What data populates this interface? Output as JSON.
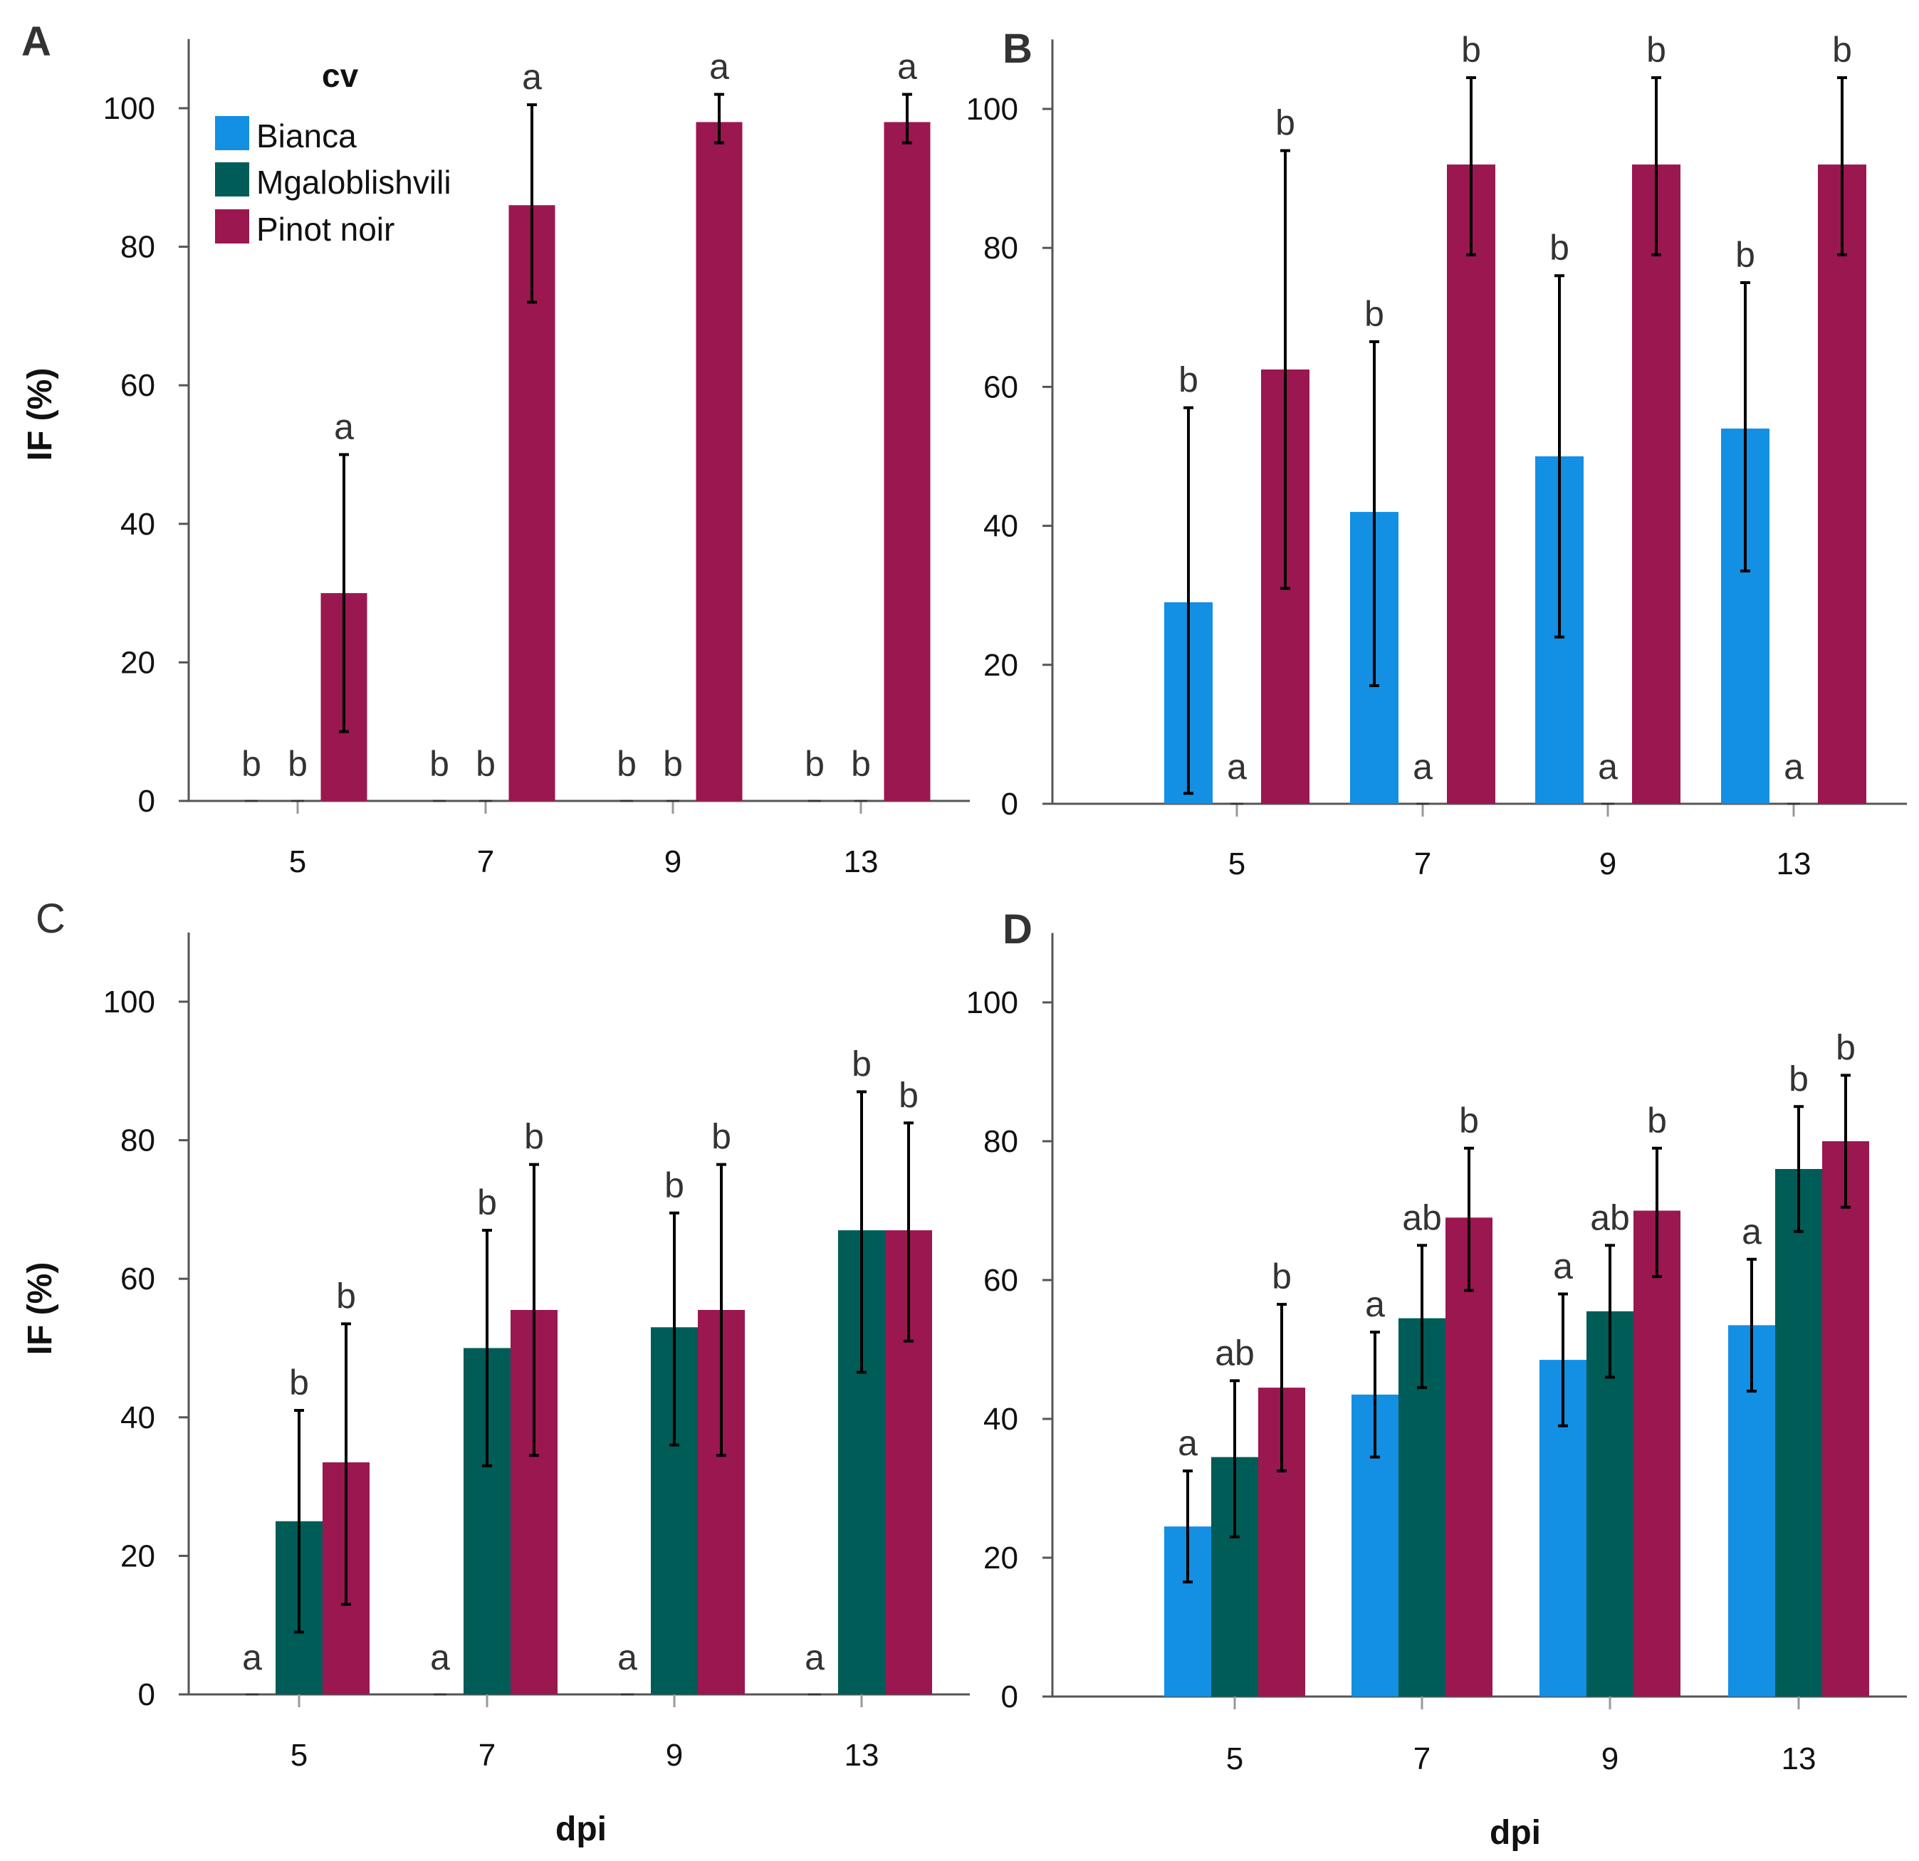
{
  "colors": {
    "Bianca": "#138fe3",
    "Mgaloblishvili": "#005c57",
    "Pinot noir": "#9b1750",
    "axis": "#555555",
    "errorbar": "#000000"
  },
  "legend": {
    "title": "cv",
    "items": [
      "Bianca",
      "Mgaloblishvili",
      "Pinot noir"
    ]
  },
  "chart_data": [
    {
      "panel": "A",
      "type": "bar",
      "categories": [
        "5",
        "7",
        "9",
        "13"
      ],
      "xlabel": "",
      "ylabel": "IF (%)",
      "ylim": [
        0,
        110
      ],
      "yticks": [
        0,
        20,
        40,
        60,
        80,
        100
      ],
      "series": [
        {
          "name": "Bianca",
          "values": [
            0,
            0,
            0,
            0
          ],
          "lower": [
            0,
            0,
            0,
            0
          ],
          "upper": [
            0,
            0,
            0,
            0
          ],
          "letters": [
            "b",
            "b",
            "b",
            "b"
          ]
        },
        {
          "name": "Mgaloblishvili",
          "values": [
            0,
            0,
            0,
            0
          ],
          "lower": [
            0,
            0,
            0,
            0
          ],
          "upper": [
            0,
            0,
            0,
            0
          ],
          "letters": [
            "b",
            "b",
            "b",
            "b"
          ]
        },
        {
          "name": "Pinot noir",
          "values": [
            30,
            86,
            98,
            98
          ],
          "lower": [
            10,
            72,
            95,
            95
          ],
          "upper": [
            50,
            100.5,
            102,
            102
          ],
          "letters": [
            "a",
            "a",
            "a",
            "a"
          ]
        }
      ]
    },
    {
      "panel": "B",
      "type": "bar",
      "categories": [
        "5",
        "7",
        "9",
        "13"
      ],
      "xlabel": "",
      "ylabel": "",
      "ylim": [
        0,
        110
      ],
      "yticks": [
        0,
        20,
        40,
        60,
        80,
        100
      ],
      "series": [
        {
          "name": "Bianca",
          "values": [
            29,
            42,
            50,
            54
          ],
          "lower": [
            1.5,
            17,
            24,
            33.5
          ],
          "upper": [
            57,
            66.5,
            76,
            75
          ],
          "letters": [
            "b",
            "b",
            "b",
            "b"
          ]
        },
        {
          "name": "Mgaloblishvili",
          "values": [
            0,
            0,
            0,
            0
          ],
          "lower": [
            0,
            0,
            0,
            0
          ],
          "upper": [
            0,
            0,
            0,
            0
          ],
          "letters": [
            "a",
            "a",
            "a",
            "a"
          ]
        },
        {
          "name": "Pinot noir",
          "values": [
            62.5,
            92,
            92,
            92
          ],
          "lower": [
            31,
            79,
            79,
            79
          ],
          "upper": [
            94,
            104.5,
            104.5,
            104.5
          ],
          "letters": [
            "b",
            "b",
            "b",
            "b"
          ]
        }
      ]
    },
    {
      "panel": "C",
      "type": "bar",
      "categories": [
        "5",
        "7",
        "9",
        "13"
      ],
      "xlabel": "dpi",
      "ylabel": "IF (%)",
      "ylim": [
        0,
        110
      ],
      "yticks": [
        0,
        20,
        40,
        60,
        80,
        100
      ],
      "series": [
        {
          "name": "Bianca",
          "values": [
            0,
            0,
            0,
            0
          ],
          "lower": [
            0,
            0,
            0,
            0
          ],
          "upper": [
            0,
            0,
            0,
            0
          ],
          "letters": [
            "a",
            "a",
            "a",
            "a"
          ]
        },
        {
          "name": "Mgaloblishvili",
          "values": [
            25,
            50,
            53,
            67
          ],
          "lower": [
            9,
            33,
            36,
            46.5
          ],
          "upper": [
            41,
            67,
            69.5,
            87
          ],
          "letters": [
            "b",
            "b",
            "b",
            "b"
          ]
        },
        {
          "name": "Pinot noir",
          "values": [
            33.5,
            55.5,
            55.5,
            67
          ],
          "lower": [
            13,
            34.5,
            34.5,
            51
          ],
          "upper": [
            53.5,
            76.5,
            76.5,
            82.5
          ],
          "letters": [
            "b",
            "b",
            "b",
            "b"
          ]
        }
      ]
    },
    {
      "panel": "D",
      "type": "bar",
      "categories": [
        "5",
        "7",
        "9",
        "13"
      ],
      "xlabel": "dpi",
      "ylabel": "",
      "ylim": [
        0,
        110
      ],
      "yticks": [
        0,
        20,
        40,
        60,
        80,
        100
      ],
      "series": [
        {
          "name": "Bianca",
          "values": [
            24.5,
            43.5,
            48.5,
            53.5
          ],
          "lower": [
            16.5,
            34.5,
            39,
            44
          ],
          "upper": [
            32.5,
            52.5,
            58,
            63
          ],
          "letters": [
            "a",
            "a",
            "a",
            "a"
          ]
        },
        {
          "name": "Mgaloblishvili",
          "values": [
            34.5,
            54.5,
            55.5,
            76
          ],
          "lower": [
            23,
            44.5,
            46,
            67
          ],
          "upper": [
            45.5,
            65,
            65,
            85
          ],
          "letters": [
            "ab",
            "ab",
            "ab",
            "b"
          ]
        },
        {
          "name": "Pinot noir",
          "values": [
            44.5,
            69,
            70,
            80
          ],
          "lower": [
            32.5,
            58.5,
            60.5,
            70.5
          ],
          "upper": [
            56.5,
            79,
            79,
            89.5
          ],
          "letters": [
            "b",
            "b",
            "b",
            "b"
          ]
        }
      ]
    }
  ]
}
